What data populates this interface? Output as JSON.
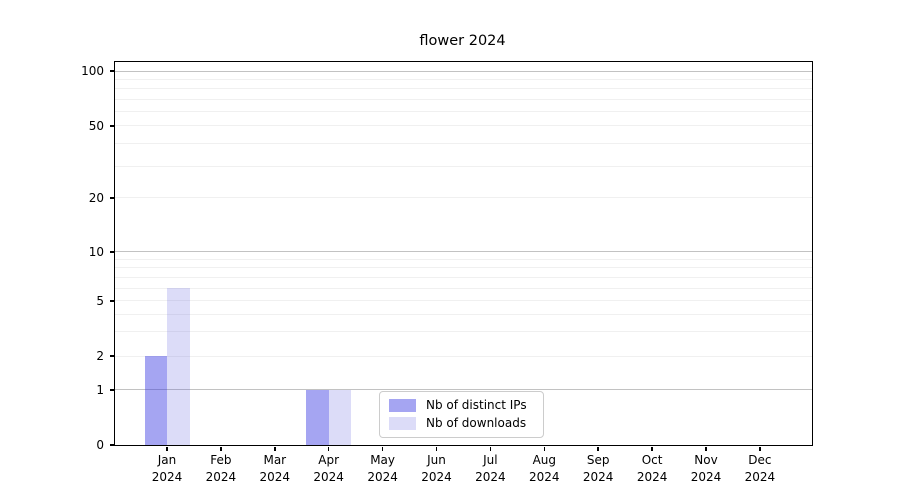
{
  "chart_data": {
    "type": "bar",
    "title": "flower 2024",
    "categories": [
      "Jan",
      "Feb",
      "Mar",
      "Apr",
      "May",
      "Jun",
      "Jul",
      "Aug",
      "Sep",
      "Oct",
      "Nov",
      "Dec"
    ],
    "x_year": "2024",
    "series": [
      {
        "name": "Nb of distinct IPs",
        "color": "#3737e2",
        "alpha": 0.45,
        "values": [
          2,
          0,
          0,
          1,
          0,
          0,
          0,
          0,
          0,
          0,
          0,
          0
        ]
      },
      {
        "name": "Nb of downloads",
        "color": "#5050dc",
        "alpha": 0.2,
        "values": [
          6,
          0,
          0,
          1,
          0,
          0,
          0,
          0,
          0,
          0,
          0,
          0
        ]
      }
    ],
    "yticks": [
      0,
      1,
      2,
      5,
      10,
      20,
      50,
      100
    ],
    "ylim": [
      0,
      100
    ],
    "yscale": "symlog",
    "grid": true,
    "legend_position": "inside-bottom-center",
    "colors": {
      "major_grid": "#c2c2c2",
      "minor_grid": "#f0f0f0",
      "axis": "#000000",
      "background": "#ffffff"
    }
  }
}
